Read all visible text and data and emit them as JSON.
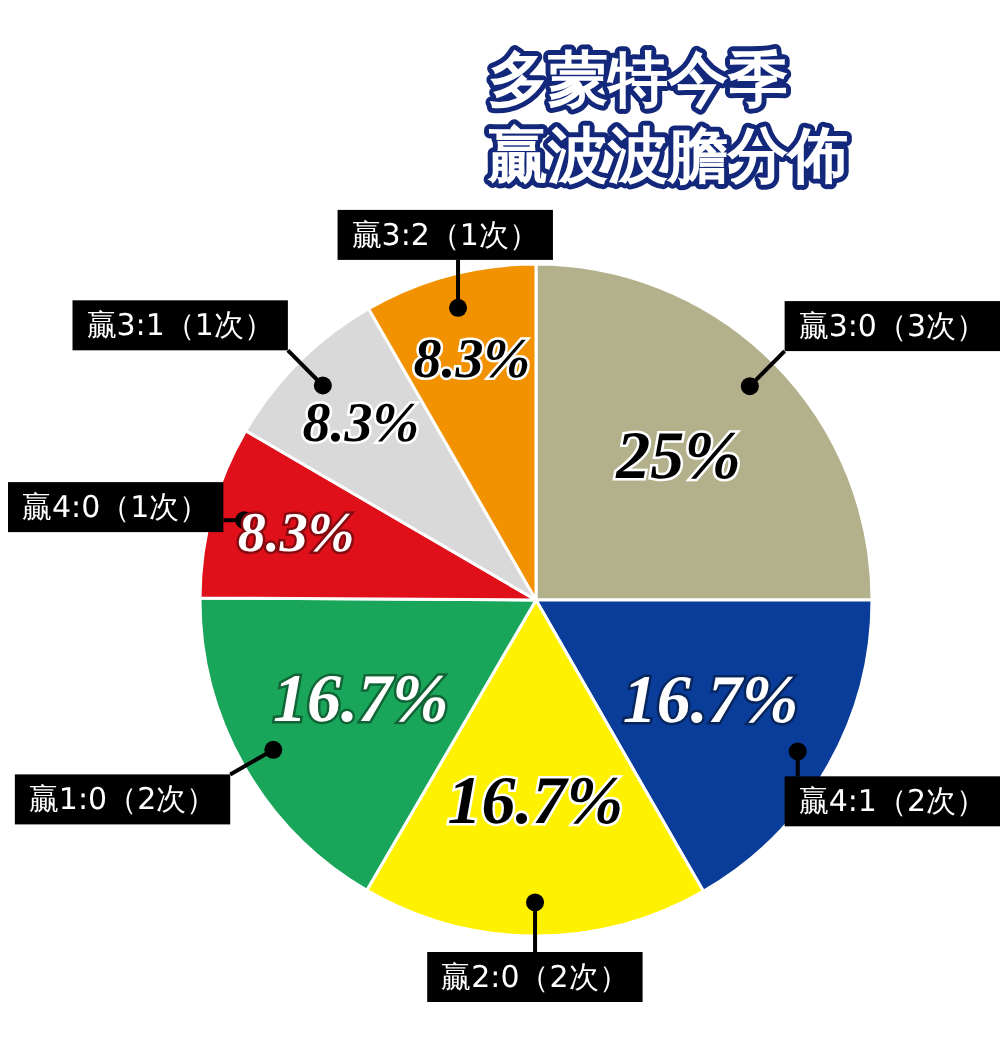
{
  "chart_data": {
    "type": "pie",
    "title": "多蒙特今季贏波波膽分佈",
    "categories": [
      "贏3:0（3次）",
      "贏4:1（2次）",
      "贏2:0（2次）",
      "贏1:0（2次）",
      "贏4:0（1次）",
      "贏3:1（1次）",
      "贏3:2（1次）"
    ],
    "values": [
      25,
      16.7,
      16.7,
      16.7,
      8.3,
      8.3,
      8.3
    ],
    "colors": [
      "#b3b08c",
      "#0a3d9a",
      "#fff200",
      "#1aa65a",
      "#e0101a",
      "#d9d9d9",
      "#f39200"
    ],
    "value_labels": [
      "25%",
      "16.7%",
      "16.7%",
      "16.7%",
      "8.3%",
      "8.3%",
      "8.3%"
    ]
  }
}
